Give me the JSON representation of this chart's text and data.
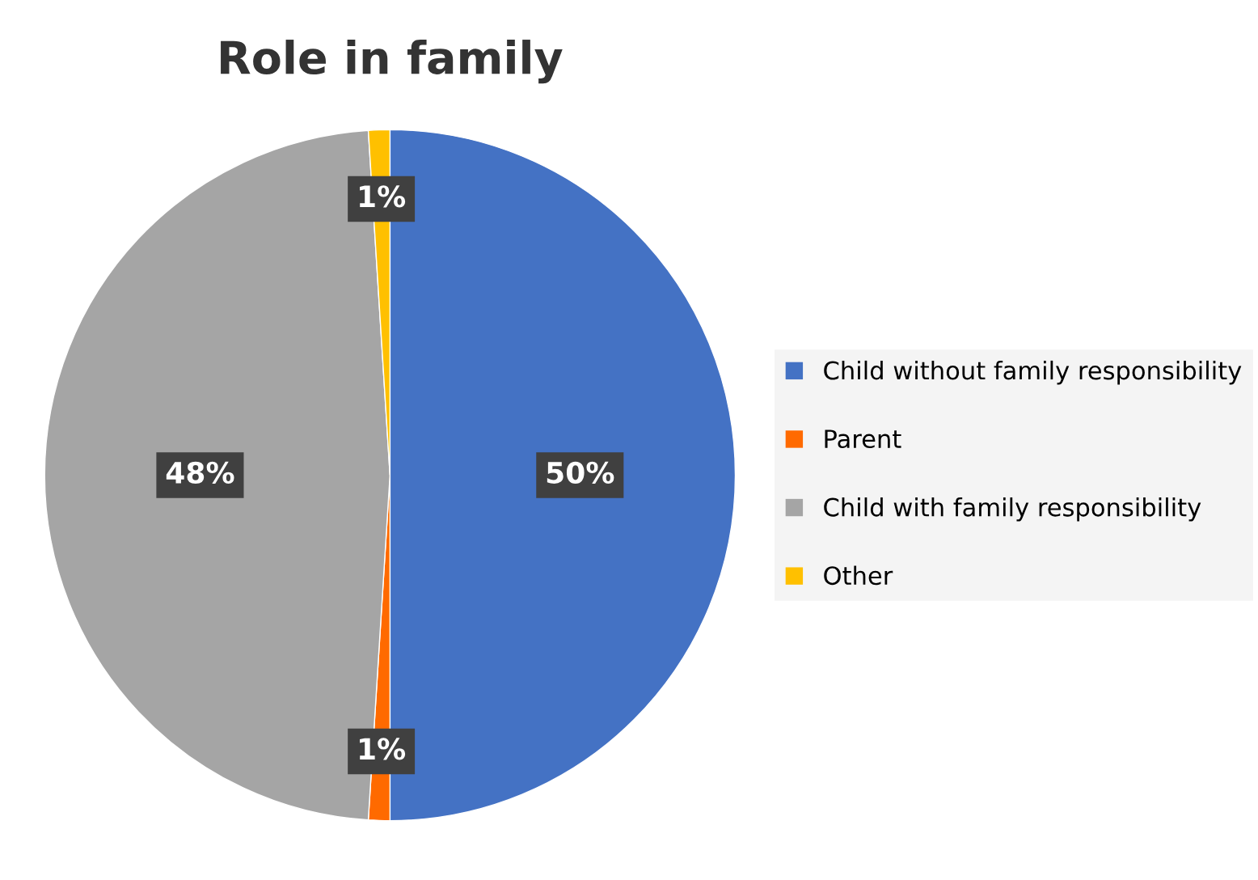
{
  "chart_data": {
    "type": "pie",
    "title": "Role in family",
    "categories": [
      "Child without family responsibility",
      "Parent",
      "Child with family responsibility",
      "Other"
    ],
    "values": [
      50,
      1,
      48,
      1
    ],
    "colors": [
      "#4472c4",
      "#ff6a00",
      "#a5a5a5",
      "#ffc000"
    ],
    "value_labels": [
      "50%",
      "1%",
      "48%",
      "1%"
    ],
    "legend": "right"
  }
}
